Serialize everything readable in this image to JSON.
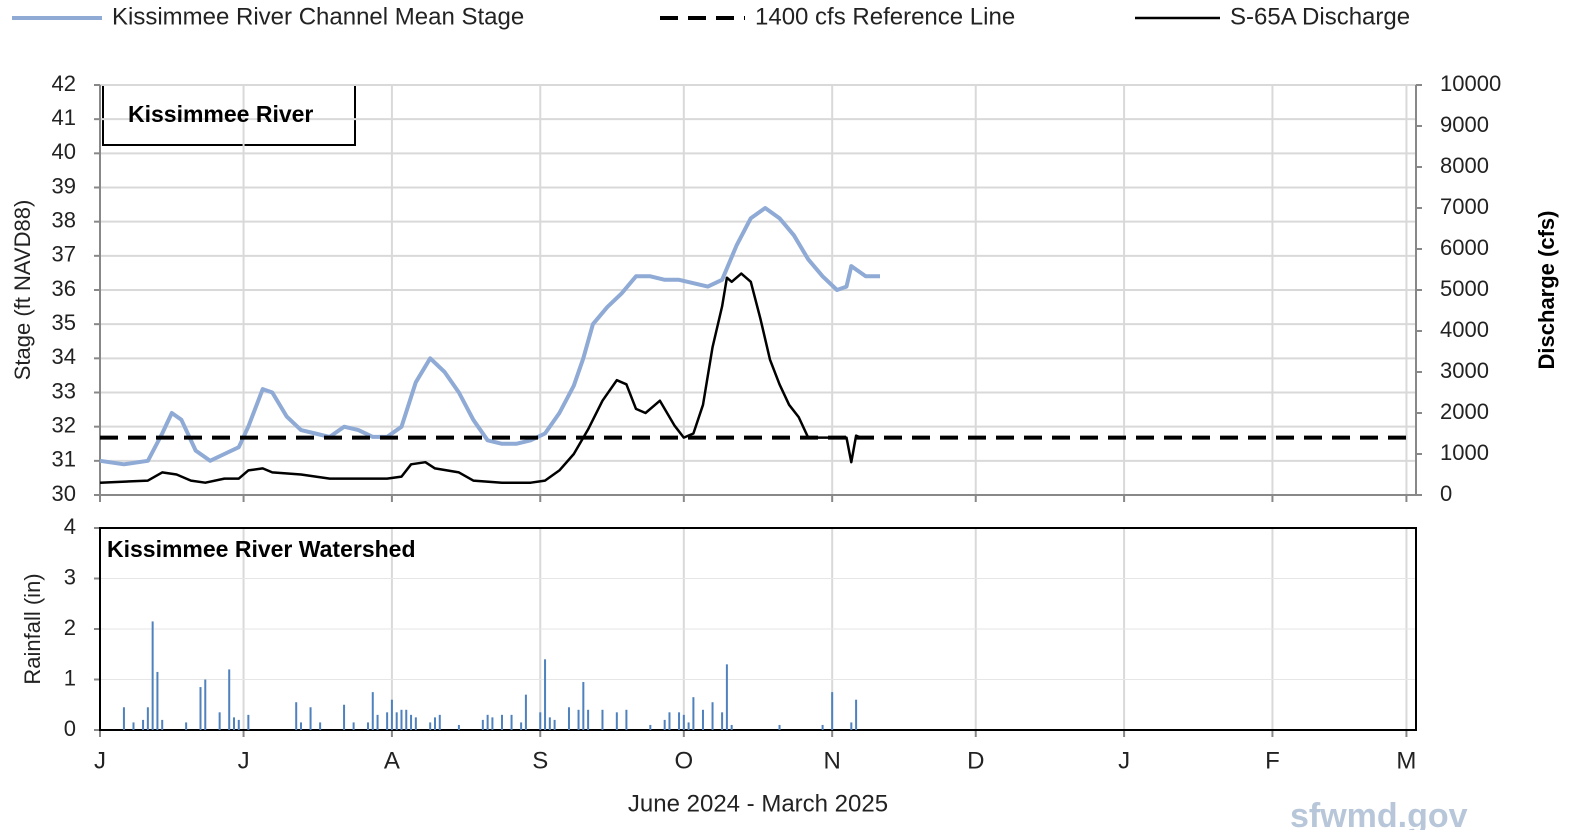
{
  "chart_data": [
    {
      "type": "line",
      "panel_label": "Kissimmee  River",
      "ylabel": "Stage  (ft NAVD88)",
      "y2label": "Discharge (cfs)",
      "ylim": [
        30,
        42
      ],
      "yticks": [
        30,
        31,
        32,
        33,
        34,
        35,
        36,
        37,
        38,
        39,
        40,
        41,
        42
      ],
      "y2lim": [
        0,
        10000
      ],
      "y2ticks": [
        0,
        1000,
        2000,
        3000,
        4000,
        5000,
        6000,
        7000,
        8000,
        9000,
        10000
      ],
      "grid": true,
      "series": [
        {
          "name": "Kissimmee River Channel Mean Stage",
          "color": "#8eaad5",
          "axis": "y",
          "style": "solid",
          "x": [
            0,
            5,
            10,
            13,
            15,
            17,
            20,
            23,
            26,
            29,
            31,
            34,
            36,
            39,
            42,
            45,
            48,
            51,
            54,
            57,
            60,
            63,
            66,
            69,
            72,
            75,
            78,
            81,
            84,
            87,
            90,
            93,
            96,
            99,
            101,
            103,
            106,
            109,
            112,
            115,
            118,
            121,
            124,
            127,
            130,
            133,
            136,
            139,
            142,
            145,
            148,
            151,
            154,
            156,
            157,
            160,
            163
          ],
          "values": [
            31.0,
            30.9,
            31.0,
            31.8,
            32.4,
            32.2,
            31.3,
            31.0,
            31.2,
            31.4,
            32.0,
            33.1,
            33.0,
            32.3,
            31.9,
            31.8,
            31.7,
            32.0,
            31.9,
            31.7,
            31.7,
            32.0,
            33.3,
            34.0,
            33.6,
            33.0,
            32.2,
            31.6,
            31.5,
            31.5,
            31.6,
            31.8,
            32.4,
            33.2,
            34.0,
            35.0,
            35.5,
            35.9,
            36.4,
            36.4,
            36.3,
            36.3,
            36.2,
            36.1,
            36.3,
            37.3,
            38.1,
            38.4,
            38.1,
            37.6,
            36.9,
            36.4,
            36.0,
            36.1,
            36.7,
            36.4,
            36.4
          ]
        },
        {
          "name": "1400 cfs Reference Line",
          "color": "#000000",
          "axis": "y2",
          "style": "dashed",
          "x": [
            0,
            275
          ],
          "values": [
            1400,
            1400
          ]
        },
        {
          "name": "S-65A Discharge",
          "color": "#000000",
          "axis": "y2",
          "style": "solid",
          "x": [
            0,
            10,
            13,
            16,
            19,
            22,
            26,
            29,
            31,
            34,
            36,
            42,
            48,
            60,
            63,
            65,
            68,
            70,
            75,
            78,
            84,
            90,
            93,
            96,
            99,
            102,
            105,
            108,
            110,
            112,
            114,
            116,
            117,
            120,
            122,
            124,
            126,
            128,
            130,
            131,
            132,
            134,
            136,
            138,
            140,
            142,
            144,
            146,
            148,
            153,
            156,
            157,
            158,
            159
          ],
          "values": [
            300,
            350,
            550,
            500,
            350,
            300,
            400,
            400,
            600,
            650,
            550,
            500,
            400,
            400,
            450,
            750,
            800,
            650,
            550,
            350,
            300,
            300,
            350,
            600,
            1000,
            1600,
            2300,
            2800,
            2700,
            2100,
            2000,
            2200,
            2300,
            1700,
            1400,
            1500,
            2200,
            3600,
            4600,
            5300,
            5200,
            5400,
            5200,
            4300,
            3300,
            2700,
            2200,
            1900,
            1400,
            1400,
            1400,
            800,
            1450,
            1400
          ]
        }
      ]
    },
    {
      "type": "bar",
      "panel_label": "Kissimmee  River Watershed",
      "ylabel": "Rainfall (in)",
      "xlabel": "June 2024 - March 2025",
      "color": "#4f81bd",
      "grid": true,
      "ylim": [
        0,
        4
      ],
      "yticks": [
        0,
        1,
        2,
        3,
        4
      ],
      "xlim": [
        0,
        275
      ],
      "xticks": [
        {
          "value": 0,
          "label": "J"
        },
        {
          "value": 30,
          "label": "J"
        },
        {
          "value": 61,
          "label": "A"
        },
        {
          "value": 92,
          "label": "S"
        },
        {
          "value": 122,
          "label": "O"
        },
        {
          "value": 153,
          "label": "N"
        },
        {
          "value": 183,
          "label": "D"
        },
        {
          "value": 214,
          "label": "J"
        },
        {
          "value": 245,
          "label": "F"
        },
        {
          "value": 273,
          "label": "M"
        }
      ],
      "x": [
        5,
        7,
        9,
        10,
        11,
        12,
        13,
        18,
        21,
        22,
        25,
        27,
        28,
        29,
        31,
        41,
        42,
        44,
        46,
        51,
        53,
        56,
        57,
        58,
        60,
        61,
        62,
        63,
        64,
        65,
        66,
        69,
        70,
        71,
        75,
        80,
        81,
        82,
        84,
        86,
        88,
        89,
        92,
        93,
        94,
        95,
        98,
        100,
        101,
        102,
        105,
        108,
        110,
        115,
        118,
        119,
        121,
        122,
        123,
        124,
        126,
        128,
        130,
        131,
        132,
        142,
        151,
        153,
        157,
        158
      ],
      "values": [
        0.45,
        0.15,
        0.2,
        0.45,
        2.15,
        1.15,
        0.2,
        0.15,
        0.85,
        1.0,
        0.35,
        1.2,
        0.25,
        0.2,
        0.3,
        0.55,
        0.15,
        0.45,
        0.15,
        0.5,
        0.15,
        0.15,
        0.75,
        0.3,
        0.35,
        0.6,
        0.35,
        0.4,
        0.4,
        0.3,
        0.25,
        0.15,
        0.25,
        0.3,
        0.1,
        0.2,
        0.3,
        0.25,
        0.3,
        0.3,
        0.15,
        0.7,
        0.35,
        1.4,
        0.25,
        0.2,
        0.45,
        0.4,
        0.95,
        0.4,
        0.4,
        0.35,
        0.4,
        0.1,
        0.2,
        0.35,
        0.35,
        0.3,
        0.15,
        0.65,
        0.4,
        0.55,
        0.35,
        1.3,
        0.1,
        0.1,
        0.1,
        0.75,
        0.15,
        0.6
      ]
    },
    {
      "type": "watermark",
      "text": "sfwmd.gov"
    }
  ]
}
